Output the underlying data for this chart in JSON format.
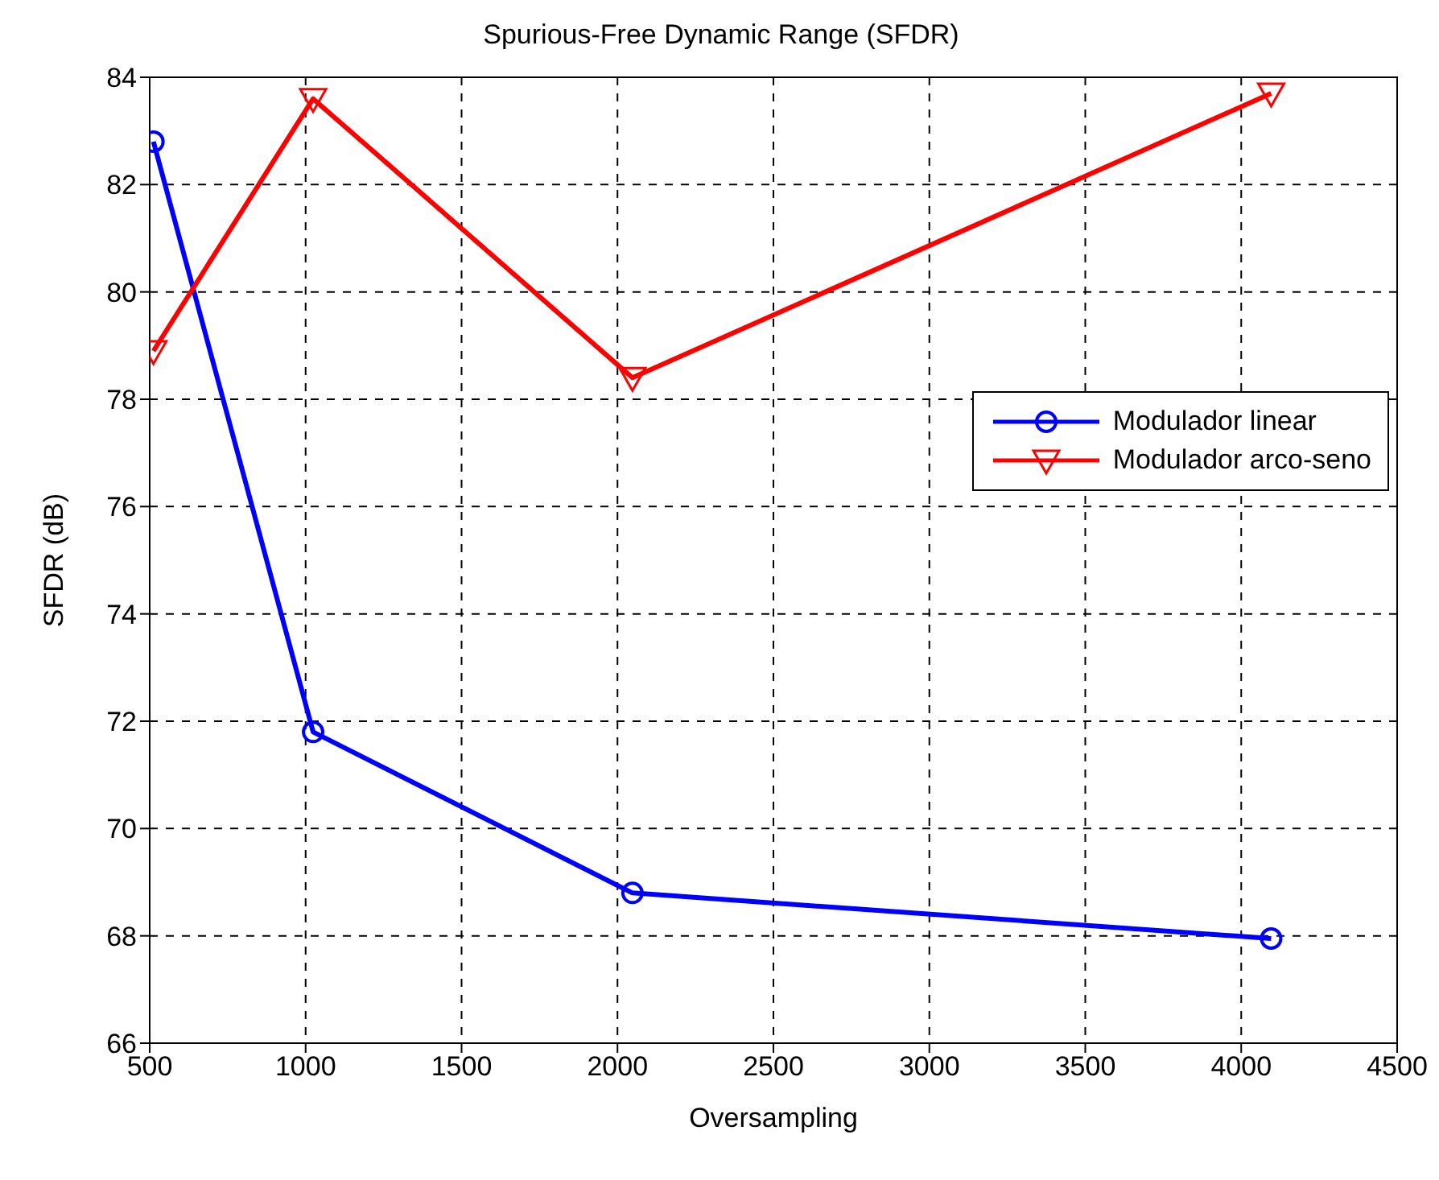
{
  "chart_data": {
    "type": "line",
    "title": "Spurious-Free Dynamic Range (SFDR)",
    "xlabel": "Oversampling",
    "ylabel": "SFDR (dB)",
    "x": [
      512,
      1024,
      2048,
      4096
    ],
    "series": [
      {
        "name": "Modulador linear",
        "color": "#0000ff",
        "marker": "circle",
        "values": [
          82.8,
          71.8,
          68.8,
          67.95
        ]
      },
      {
        "name": "Modulador arco-seno",
        "color": "#ff0000",
        "marker": "triangle",
        "values": [
          78.9,
          83.6,
          78.4,
          83.7
        ]
      }
    ],
    "xlim": [
      500,
      4500
    ],
    "xticks": [
      500,
      1000,
      1500,
      2000,
      2500,
      3000,
      3500,
      4000,
      4500
    ],
    "ylim": [
      66,
      84
    ],
    "yticks": [
      66,
      68,
      70,
      72,
      74,
      76,
      78,
      80,
      82,
      84
    ],
    "grid": true,
    "legend": "right",
    "line_style": "solid"
  }
}
